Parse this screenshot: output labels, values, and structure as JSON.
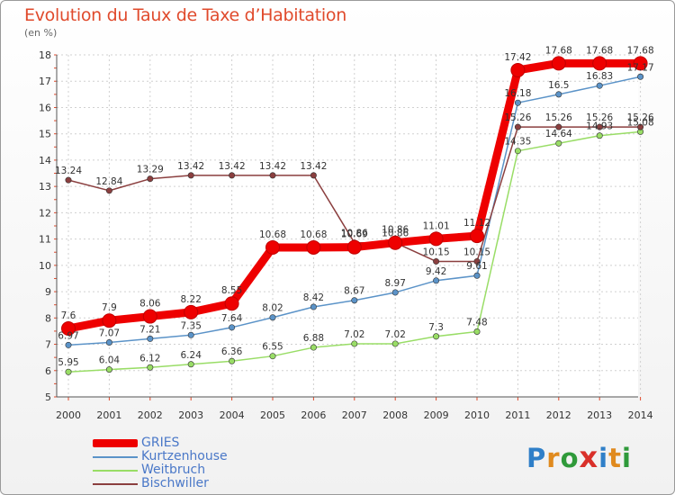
{
  "header": {
    "title": "Evolution du Taux de Taxe d’Habitation",
    "subtitle": "(en %)"
  },
  "brand": {
    "letters": [
      "P",
      "r",
      "o",
      "x",
      "i",
      "t",
      "i"
    ],
    "colors": [
      "#2f7fc8",
      "#e08a1e",
      "#2f9a3a",
      "#d9302a",
      "#2f7fc8",
      "#e08a1e",
      "#2f9a3a"
    ]
  },
  "chart_data": {
    "type": "line",
    "title": "Evolution du Taux de Taxe d’Habitation",
    "ylabel": "(en %)",
    "xlabel": "",
    "ylim": [
      5,
      18
    ],
    "yticks": [
      5,
      6,
      7,
      8,
      9,
      10,
      11,
      12,
      13,
      14,
      15,
      16,
      17,
      18
    ],
    "x": [
      "2000",
      "2001",
      "2002",
      "2003",
      "2004",
      "2005",
      "2006",
      "2007",
      "2008",
      "2009",
      "2010",
      "2011",
      "2012",
      "2013",
      "2014"
    ],
    "grid": true,
    "legend_position": "bottom-left",
    "series": [
      {
        "name": "GRIES",
        "color": "#ee0000",
        "emphasis": true,
        "values": [
          7.6,
          7.9,
          8.06,
          8.22,
          8.55,
          10.68,
          10.68,
          10.69,
          10.86,
          11.01,
          11.12,
          17.42,
          17.68,
          17.68,
          17.68
        ],
        "labels": [
          "7.6",
          "7.9",
          "8.06",
          "8.22",
          "8.55",
          "10.68",
          "10.68",
          "10.69",
          "10.86",
          "11.01",
          "11.12",
          "17.42",
          "17.68",
          "17.68",
          "17.68"
        ]
      },
      {
        "name": "Kurtzenhouse",
        "color": "#5b93c8",
        "emphasis": false,
        "values": [
          6.97,
          7.07,
          7.21,
          7.35,
          7.64,
          8.02,
          8.42,
          8.67,
          8.97,
          9.42,
          9.61,
          16.18,
          16.5,
          16.83,
          17.17
        ],
        "labels": [
          "6.97",
          "7.07",
          "7.21",
          "7.35",
          "7.64",
          "8.02",
          "8.42",
          "8.67",
          "8.97",
          "9.42",
          "9.61",
          "16.18",
          "16.5",
          "16.83",
          "17.17"
        ]
      },
      {
        "name": "Weitbruch",
        "color": "#99dd66",
        "emphasis": false,
        "values": [
          5.95,
          6.04,
          6.12,
          6.24,
          6.36,
          6.55,
          6.88,
          7.02,
          7.02,
          7.3,
          7.48,
          14.35,
          14.64,
          14.93,
          15.08
        ],
        "labels": [
          "5.95",
          "6.04",
          "6.12",
          "6.24",
          "6.36",
          "6.55",
          "6.88",
          "7.02",
          "7.02",
          "7.3",
          "7.48",
          "14.35",
          "14.64",
          "14.93",
          "15.08"
        ]
      },
      {
        "name": "Bischwiller",
        "color": "#8b3f3f",
        "emphasis": false,
        "values": [
          13.24,
          12.84,
          13.29,
          13.42,
          13.42,
          13.42,
          13.42,
          10.86,
          10.86,
          10.15,
          10.15,
          15.26,
          15.26,
          15.26,
          15.26
        ],
        "labels": [
          "13.24",
          "12.84",
          "13.29",
          "13.42",
          "13.42",
          "13.42",
          "13.42",
          "10.86",
          "10.86",
          "10.15",
          "10.15",
          "15.26",
          "15.26",
          "15.26",
          "15.26"
        ]
      }
    ]
  }
}
